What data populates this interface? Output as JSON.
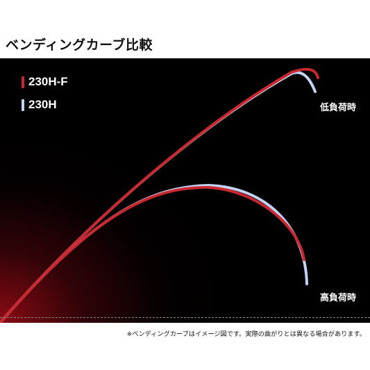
{
  "title": "ベンディングカーブ比較",
  "legend": [
    {
      "label": "230H-F",
      "color": "#c8282f"
    },
    {
      "label": "230H",
      "color": "#c4d2f2"
    }
  ],
  "labels": {
    "low_load": "低負荷時",
    "high_load": "高負荷時"
  },
  "footnote": "※ベンディングカーブはイメージ図です。実際の曲がりとは異なる場合があります。",
  "colors": {
    "background": "#000000",
    "glow": "#a00c16",
    "red_series": "#c8282f",
    "blue_series": "#c4d2f2",
    "baseline": "#8a8a8a"
  }
}
